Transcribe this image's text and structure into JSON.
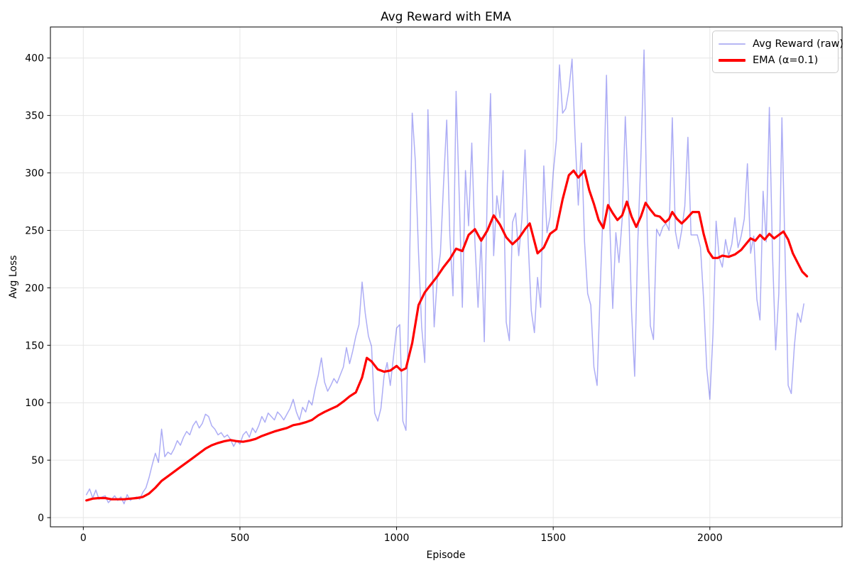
{
  "chart_data": {
    "type": "line",
    "title": "Avg Reward with EMA",
    "xlabel": "Episode",
    "ylabel": "Avg Loss",
    "xlim": [
      -105,
      2422
    ],
    "ylim": [
      -8,
      427
    ],
    "xticks": [
      0,
      500,
      1000,
      1500,
      2000
    ],
    "yticks": [
      0,
      50,
      100,
      150,
      200,
      250,
      300,
      350,
      400
    ],
    "grid": true,
    "grid_color": "#e6e6e6",
    "spine_color": "#000000",
    "legend_position": "upper right",
    "series": [
      {
        "name": "Avg Reward (raw)",
        "color": "#0000e0",
        "opacity": 0.32,
        "legend_color": "#b7b7f4",
        "linewidth": 1.5,
        "x_start": 10,
        "x_step": 10,
        "values": [
          20,
          25,
          17,
          24,
          16,
          18,
          19,
          13,
          16,
          19,
          15,
          18,
          12,
          20,
          15,
          17,
          18,
          16,
          22,
          26,
          35,
          46,
          56,
          48,
          77,
          53,
          57,
          55,
          60,
          67,
          63,
          70,
          75,
          72,
          80,
          84,
          78,
          82,
          90,
          88,
          80,
          77,
          72,
          74,
          70,
          72,
          68,
          62,
          67,
          64,
          72,
          75,
          70,
          78,
          74,
          80,
          88,
          83,
          91,
          88,
          85,
          92,
          89,
          85,
          90,
          95,
          103,
          92,
          85,
          96,
          92,
          102,
          98,
          112,
          124,
          139,
          118,
          110,
          115,
          121,
          117,
          124,
          131,
          148,
          134,
          145,
          158,
          168,
          205,
          178,
          158,
          149,
          91,
          84,
          95,
          123,
          135,
          115,
          140,
          165,
          168,
          84,
          76,
          197,
          352,
          310,
          230,
          166,
          135,
          355,
          260,
          166,
          209,
          230,
          290,
          346,
          246,
          193,
          371,
          280,
          183,
          302,
          254,
          326,
          240,
          183,
          244,
          153,
          290,
          369,
          228,
          280,
          261,
          302,
          170,
          154,
          257,
          265,
          228,
          260,
          320,
          240,
          180,
          161,
          209,
          183,
          306,
          248,
          262,
          300,
          328,
          394,
          352,
          356,
          372,
          399,
          330,
          272,
          326,
          240,
          195,
          185,
          131,
          115,
          200,
          275,
          385,
          260,
          182,
          248,
          222,
          260,
          349,
          280,
          180,
          123,
          240,
          314,
          407,
          250,
          167,
          155,
          251,
          245,
          253,
          256,
          250,
          348,
          249,
          234,
          250,
          271,
          331,
          246,
          246,
          246,
          235,
          190,
          130,
          103,
          160,
          258,
          226,
          218,
          242,
          228,
          238,
          261,
          235,
          245,
          260,
          308,
          230,
          245,
          190,
          172,
          284,
          240,
          357,
          230,
          146,
          195,
          348,
          230,
          115,
          108,
          150,
          178,
          170,
          186
        ]
      },
      {
        "name": "EMA (α=0.1)",
        "color": "#ff0000",
        "opacity": 1,
        "legend_color": "#ff0000",
        "linewidth": 3.2,
        "x": [
          10,
          30,
          50,
          70,
          90,
          110,
          130,
          150,
          170,
          190,
          210,
          230,
          250,
          270,
          290,
          310,
          330,
          350,
          370,
          390,
          410,
          430,
          450,
          470,
          490,
          510,
          530,
          550,
          570,
          590,
          610,
          630,
          650,
          670,
          690,
          710,
          730,
          750,
          770,
          790,
          810,
          830,
          850,
          870,
          890,
          905,
          920,
          940,
          960,
          980,
          1000,
          1015,
          1030,
          1050,
          1070,
          1090,
          1110,
          1130,
          1150,
          1170,
          1190,
          1210,
          1230,
          1250,
          1270,
          1290,
          1310,
          1330,
          1350,
          1370,
          1390,
          1410,
          1425,
          1450,
          1470,
          1490,
          1510,
          1530,
          1550,
          1565,
          1580,
          1600,
          1615,
          1630,
          1645,
          1660,
          1675,
          1690,
          1705,
          1720,
          1735,
          1750,
          1765,
          1780,
          1795,
          1810,
          1825,
          1840,
          1858,
          1870,
          1880,
          1895,
          1910,
          1925,
          1945,
          1965,
          1980,
          1995,
          2010,
          2025,
          2040,
          2060,
          2080,
          2100,
          2115,
          2130,
          2145,
          2160,
          2175,
          2190,
          2205,
          2220,
          2235,
          2250,
          2265,
          2280,
          2295,
          2310
        ],
        "y": [
          15,
          16.5,
          17,
          17,
          16,
          16,
          16,
          16.5,
          17,
          18,
          21,
          26,
          32,
          36,
          40,
          44,
          48,
          52,
          56,
          60,
          63,
          65,
          66.5,
          67.5,
          66.5,
          66,
          67,
          68.5,
          71,
          73,
          75,
          76.5,
          78,
          80.5,
          81.5,
          83,
          85,
          89,
          92,
          94.5,
          97,
          101,
          105.5,
          109,
          122,
          139,
          136,
          129,
          127,
          128,
          132,
          128,
          130,
          152,
          185,
          196,
          203,
          210,
          218,
          225,
          234,
          232,
          246,
          251,
          241,
          250,
          263,
          255,
          244,
          238,
          243,
          251,
          256,
          230,
          235,
          247,
          251,
          277,
          298,
          302,
          296,
          302,
          285,
          273,
          259,
          252,
          272,
          265,
          259,
          263,
          275,
          262,
          253,
          262,
          274,
          268,
          263,
          262,
          257,
          260,
          266,
          260,
          256,
          260,
          266,
          266,
          247,
          232,
          226,
          226,
          228,
          227,
          229,
          233,
          238,
          243,
          241,
          246,
          242,
          247,
          243,
          246,
          249,
          242,
          230,
          222,
          214,
          210
        ]
      }
    ]
  }
}
